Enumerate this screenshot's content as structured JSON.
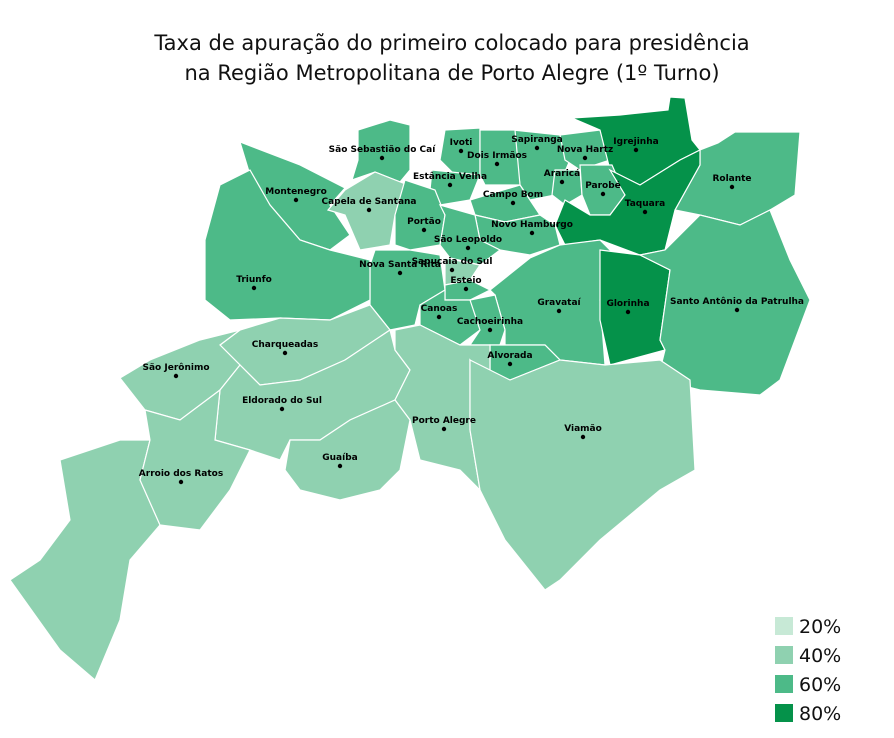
{
  "title": [
    "Taxa de apuração do primeiro colocado para presidência",
    "na Região Metropolitana de Porto Alegre (1º Turno)"
  ],
  "legend": [
    {
      "label": "20%",
      "color": "#c7e9d6"
    },
    {
      "label": "40%",
      "color": "#8fd1b0"
    },
    {
      "label": "60%",
      "color": "#4dba88"
    },
    {
      "label": "80%",
      "color": "#05924a"
    }
  ],
  "municipalities": [
    {
      "name": "São Sebastião do Caí",
      "color": "#4dba88"
    },
    {
      "name": "Ivoti",
      "color": "#4dba88"
    },
    {
      "name": "Sapiranga",
      "color": "#4dba88"
    },
    {
      "name": "Nova Hartz",
      "color": "#4dba88"
    },
    {
      "name": "Igrejinha",
      "color": "#05924a"
    },
    {
      "name": "Dois Irmãos",
      "color": "#4dba88"
    },
    {
      "name": "Montenegro",
      "color": "#4dba88"
    },
    {
      "name": "Capela de Santana",
      "color": "#8fd1b0"
    },
    {
      "name": "Estância Velha",
      "color": "#4dba88"
    },
    {
      "name": "Araricá",
      "color": "#4dba88"
    },
    {
      "name": "Parobé",
      "color": "#4dba88"
    },
    {
      "name": "Rolante",
      "color": "#4dba88"
    },
    {
      "name": "Campo Bom",
      "color": "#4dba88"
    },
    {
      "name": "Taquara",
      "color": "#05924a"
    },
    {
      "name": "Portão",
      "color": "#4dba88"
    },
    {
      "name": "Novo Hamburgo",
      "color": "#4dba88"
    },
    {
      "name": "São Leopoldo",
      "color": "#4dba88"
    },
    {
      "name": "Nova Santa Rita",
      "color": "#4dba88"
    },
    {
      "name": "Sapucaia do Sul",
      "color": "#8fd1b0"
    },
    {
      "name": "Esteio",
      "color": "#4dba88"
    },
    {
      "name": "Triunfo",
      "color": "#4dba88"
    },
    {
      "name": "Canoas",
      "color": "#4dba88"
    },
    {
      "name": "Gravataí",
      "color": "#4dba88"
    },
    {
      "name": "Glorinha",
      "color": "#05924a"
    },
    {
      "name": "Santo Antônio da Patrulha",
      "color": "#4dba88"
    },
    {
      "name": "Cachoeirinha",
      "color": "#4dba88"
    },
    {
      "name": "Alvorada",
      "color": "#4dba88"
    },
    {
      "name": "Charqueadas",
      "color": "#8fd1b0"
    },
    {
      "name": "São Jerônimo",
      "color": "#8fd1b0"
    },
    {
      "name": "Eldorado do Sul",
      "color": "#8fd1b0"
    },
    {
      "name": "Porto Alegre",
      "color": "#8fd1b0"
    },
    {
      "name": "Viamão",
      "color": "#8fd1b0"
    },
    {
      "name": "Guaíba",
      "color": "#8fd1b0"
    },
    {
      "name": "Arroio dos Ratos",
      "color": "#8fd1b0"
    }
  ]
}
